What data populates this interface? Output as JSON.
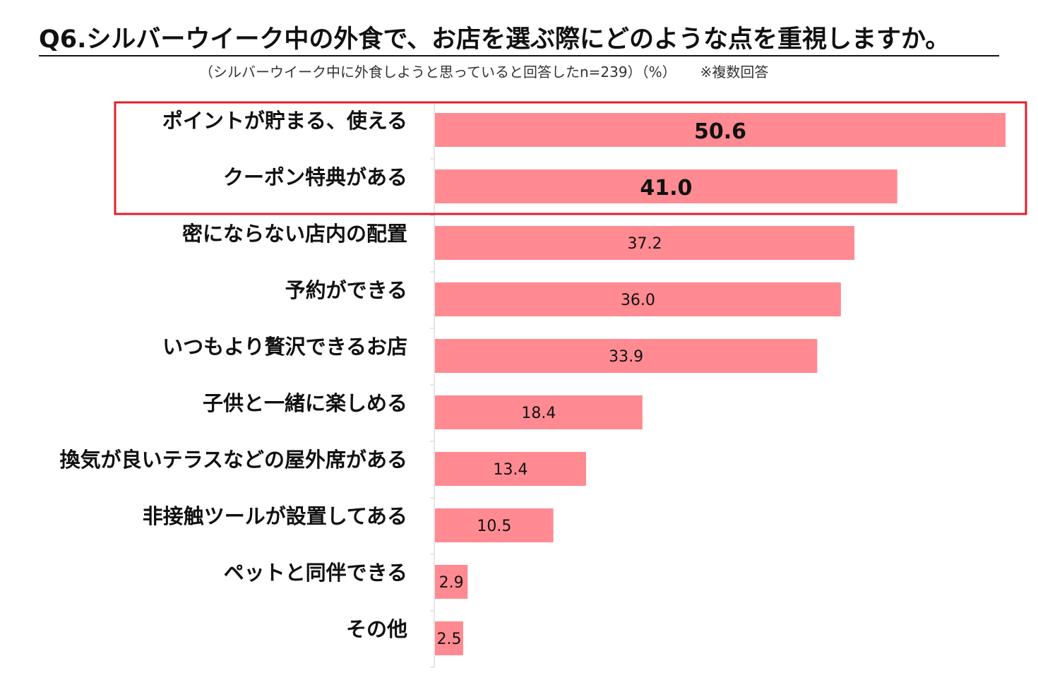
{
  "title": "Q6.シルバーウイーク中の外食で、お店を選ぶ際にどのような点を重視しますか。",
  "subtitle": "（シルバーウイーク中に外食しようと思っていると回答したn=239）（%）",
  "note": "※複数回答",
  "colors": {
    "bar": "#ff8a91",
    "highlight_border": "#e0202a",
    "axis": "#cccccc"
  },
  "chart_data": {
    "type": "bar",
    "orientation": "horizontal",
    "title": "Q6.シルバーウイーク中の外食で、お店を選ぶ際にどのような点を重視しますか。",
    "unit": "%",
    "categories": [
      "ポイントが貯まる、使える",
      "クーポン特典がある",
      "密にならない店内の配置",
      "予約ができる",
      "いつもより贅沢できるお店",
      "子供と一緒に楽しめる",
      "換気が良いテラスなどの屋外席がある",
      "非接触ツールが設置してある",
      "ペットと同伴できる",
      "その他"
    ],
    "values": [
      50.6,
      41.0,
      37.2,
      36.0,
      33.9,
      18.4,
      13.4,
      10.5,
      2.9,
      2.5
    ],
    "value_labels": [
      "50.6",
      "41.0",
      "37.2",
      "36.0",
      "33.9",
      "18.4",
      "13.4",
      "10.5",
      "2.9",
      "2.5"
    ],
    "highlighted": [
      "ポイントが貯まる、使える",
      "クーポン特典がある"
    ],
    "grid": false,
    "legend": "none"
  }
}
